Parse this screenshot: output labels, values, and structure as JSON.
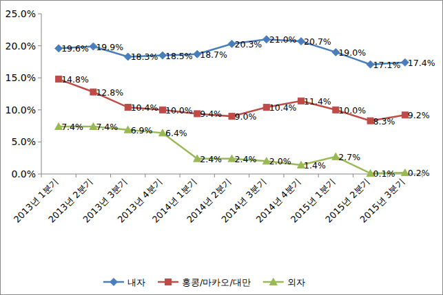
{
  "chart_data": {
    "type": "line",
    "categories": [
      "2013년 1분기",
      "2013년 2분기",
      "2013년 3분기",
      "2013년 4분기",
      "2014년 1분기",
      "2014년 2분기",
      "2014년 3분기",
      "2014년 4분기",
      "2015년 1분기",
      "2015년 2분기",
      "2015년 3분기"
    ],
    "series": [
      {
        "name": "내자",
        "color": "#4a7ebb",
        "marker": "diamond",
        "values": [
          19.6,
          19.9,
          18.3,
          18.5,
          18.7,
          20.3,
          21.0,
          20.7,
          19.0,
          17.1,
          17.4
        ],
        "value_labels": [
          "19.6%",
          "19.9%",
          "18.3%",
          "18.5%",
          "18.7%",
          "20.3%",
          "21.0%",
          "20.7%",
          "19.0%",
          "17.1%",
          "17.4%"
        ]
      },
      {
        "name": "홍콩/마카오/대만",
        "color": "#be4b48",
        "marker": "square",
        "values": [
          14.8,
          12.8,
          10.4,
          10.0,
          9.4,
          9.0,
          10.4,
          11.4,
          10.0,
          8.3,
          9.2
        ],
        "value_labels": [
          "14.8%",
          "12.8%",
          "10.4%",
          "10.0%",
          "9.4%",
          "9.0%",
          "10.4%",
          "11.4%",
          "10.0%",
          "8.3%",
          "9.2%"
        ]
      },
      {
        "name": "외자",
        "color": "#98b954",
        "marker": "triangle",
        "values": [
          7.4,
          7.4,
          6.9,
          6.4,
          2.4,
          2.4,
          2.0,
          1.4,
          2.7,
          0.1,
          0.2
        ],
        "value_labels": [
          "7.4%",
          "7.4%",
          "6.9%",
          "6.4%",
          "2.4%",
          "2.4%",
          "2.0%",
          "1.4%",
          "2.7%",
          "0.1%",
          "0.2%"
        ]
      }
    ],
    "ylim": [
      0,
      25
    ],
    "yticks": [
      {
        "value": 0,
        "label": "0.0%"
      },
      {
        "value": 5,
        "label": "5.0%"
      },
      {
        "value": 10,
        "label": "10.0%"
      },
      {
        "value": 15,
        "label": "15.0%"
      },
      {
        "value": 20,
        "label": "20.0%"
      },
      {
        "value": 25,
        "label": "25.0%"
      }
    ],
    "grid": false,
    "legend": "bottom",
    "data_labels": true
  }
}
